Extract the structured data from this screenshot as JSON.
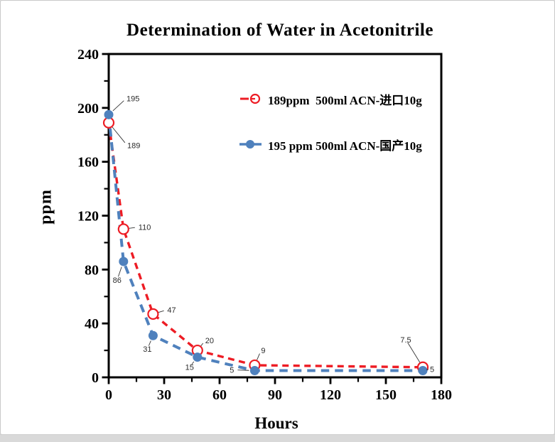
{
  "chart": {
    "title": "Determination of Water in Acetonitrile",
    "xlabel": "Hours",
    "ylabel": "ppm"
  },
  "legend": [
    {
      "label": "189ppm  500ml ACN-进口10g",
      "color": "#ed1c24",
      "marker": "dashed-open-circle"
    },
    {
      "label": "195 ppm 500ml ACN-国产10g",
      "color": "#4f81bd",
      "marker": "solid-filled-circle"
    }
  ],
  "chart_data": {
    "type": "line",
    "title": "Determination of Water in Acetonitrile",
    "xlabel": "Hours",
    "ylabel": "ppm",
    "xlim": [
      0,
      180
    ],
    "ylim": [
      0,
      240
    ],
    "x_ticks": [
      0,
      30,
      60,
      90,
      120,
      150,
      180
    ],
    "y_ticks": [
      0,
      40,
      80,
      120,
      160,
      200,
      240
    ],
    "minor_x_ticks": [
      15,
      45,
      75,
      105,
      135,
      165
    ],
    "minor_y_ticks": [
      20,
      60,
      100,
      140,
      180,
      220
    ],
    "grid": false,
    "legend_position": "inside-upper-right",
    "x": [
      0,
      8,
      24,
      48,
      79,
      170
    ],
    "series": [
      {
        "name": "189ppm  500ml ACN-进口10g",
        "color": "#ed1c24",
        "line_style": "dashed",
        "marker": "open-circle",
        "values": [
          189,
          110,
          47,
          20,
          9,
          7.5
        ],
        "point_labels": [
          "189",
          "110",
          "47",
          "20",
          "9",
          "7.5"
        ],
        "label_offsets": [
          [
            26,
            32,
            "start"
          ],
          [
            21,
            -3,
            "start"
          ],
          [
            20,
            -6,
            "start"
          ],
          [
            11,
            -14,
            "start"
          ],
          [
            9,
            -21,
            "start"
          ],
          [
            -24,
            -39,
            "middle"
          ]
        ]
      },
      {
        "name": "195 ppm 500ml ACN-国产10g",
        "color": "#4f81bd",
        "line_style": "dashed",
        "marker": "filled-circle",
        "values": [
          195,
          86,
          31,
          15,
          5,
          5
        ],
        "point_labels": [
          "195",
          "86",
          "31",
          "15",
          "5",
          "5"
        ],
        "label_offsets": [
          [
            25,
            -23,
            "start"
          ],
          [
            -9,
            26,
            "middle"
          ],
          [
            -8,
            19,
            "middle"
          ],
          [
            -11,
            14,
            "middle"
          ],
          [
            -29,
            -1,
            "end"
          ],
          [
            10,
            -2,
            "start"
          ]
        ]
      }
    ]
  }
}
